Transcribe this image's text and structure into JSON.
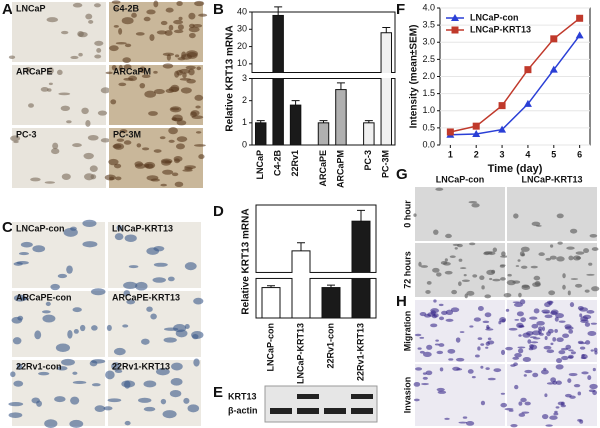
{
  "panels": {
    "letters": [
      "A",
      "B",
      "C",
      "D",
      "E",
      "F",
      "G",
      "H"
    ]
  },
  "panel_a": {
    "labels": [
      "LNCaP",
      "C4-2B",
      "ARCaPE",
      "ARCaPM",
      "PC-3",
      "PC-3M"
    ]
  },
  "panel_c": {
    "labels": [
      "LNCaP-con",
      "LNCaP-KRT13",
      "ARCaPE-con",
      "ARCaPE-KRT13",
      "22Rv1-con",
      "22Rv1-KRT13"
    ]
  },
  "panel_e": {
    "labels": [
      "KRT13",
      "β-actin"
    ]
  },
  "panel_g": {
    "columns": [
      "LNCaP-con",
      "LNCaP-KRT13"
    ],
    "rows": [
      "0 hour",
      "72 hours"
    ]
  },
  "panel_h": {
    "rows": [
      "Migration",
      "Invasion"
    ]
  },
  "chart_data": [
    {
      "type": "bar",
      "ylabel": "Relative KRT13 mRNA",
      "categories": [
        "LNCaP",
        "C4-2B",
        "22Rv1",
        "ARCaPE",
        "ARCaPM",
        "PC-3",
        "PC-3M"
      ],
      "values": [
        1,
        38,
        1.8,
        1,
        2.5,
        1,
        28
      ],
      "errors": [
        0.1,
        5,
        0.2,
        0.1,
        0.3,
        0.1,
        3
      ],
      "colors": [
        "#1a1a1a",
        "#1a1a1a",
        "#1a1a1a",
        "#b0b0b0",
        "#b0b0b0",
        "#f0f0f0",
        "#f0f0f0"
      ],
      "ylim": [
        0,
        40
      ],
      "ybreak": [
        3,
        5
      ],
      "yticks": [
        0,
        1,
        2,
        3,
        10,
        20,
        30,
        40
      ]
    },
    {
      "type": "bar",
      "ylabel": "Relative KRT13 mRNA",
      "categories": [
        "LNCaP-con",
        "LNCaP-KRT13",
        "22Rv1-con",
        "22Rv1-KRT13"
      ],
      "values": [
        1,
        3.3,
        1,
        4.4
      ],
      "errors": [
        0.06,
        0.3,
        0.08,
        0.4
      ],
      "colors": [
        "#ffffff",
        "#ffffff",
        "#1a1a1a",
        "#1a1a1a"
      ],
      "ylim": [
        0,
        5
      ],
      "ybreak": [
        1.3,
        2.5
      ]
    },
    {
      "type": "line",
      "xlabel": "Time (day)",
      "ylabel": "Intensity (mean±SEM)",
      "x": [
        1,
        2,
        3,
        4,
        5,
        6
      ],
      "xlim": [
        0.6,
        6.4
      ],
      "xticks": [
        1,
        2,
        3,
        4,
        5,
        6
      ],
      "ylim": [
        0,
        4
      ],
      "yticks": [
        {
          "value": 0,
          "label": "0.0"
        },
        {
          "value": 0.5,
          "label": "0.5"
        },
        {
          "value": 1,
          "label": "1.0"
        },
        {
          "value": 1.5,
          "label": "1.5"
        },
        {
          "value": 2,
          "label": "2.0"
        },
        {
          "value": 2.5,
          "label": "2.5"
        },
        {
          "value": 3,
          "label": "3.0"
        },
        {
          "value": 3.5,
          "label": "3.5"
        },
        {
          "value": 4,
          "label": "4.0"
        }
      ],
      "legend": "upper left",
      "series": [
        {
          "name": "LNCaP-con",
          "color": "#2a3fd6",
          "marker": "triangle",
          "values": [
            0.3,
            0.32,
            0.45,
            1.2,
            2.2,
            3.2
          ]
        },
        {
          "name": "LNCaP-KRT13",
          "color": "#c0392b",
          "marker": "square",
          "values": [
            0.38,
            0.55,
            1.15,
            2.2,
            3.1,
            3.7
          ]
        }
      ]
    }
  ]
}
